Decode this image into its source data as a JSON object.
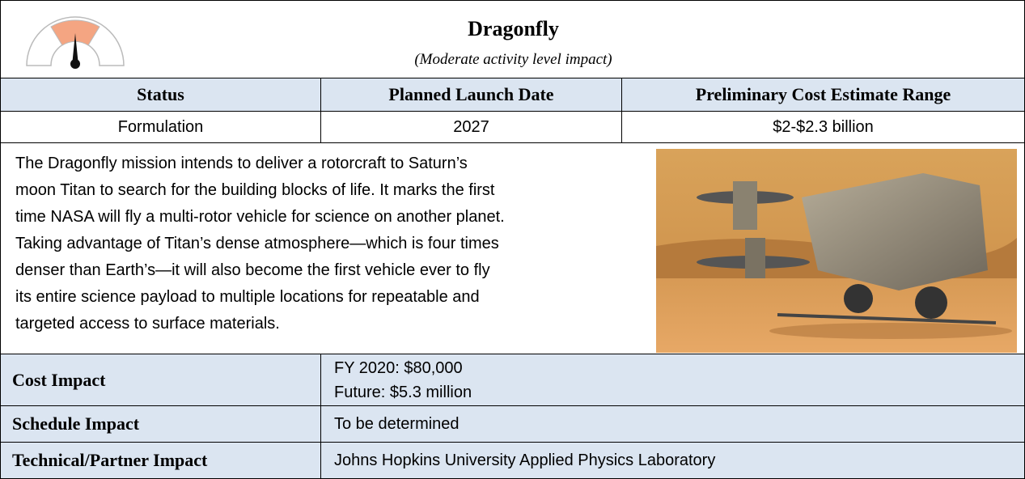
{
  "header": {
    "title": "Dragonfly",
    "subtitle": "(Moderate activity level impact)"
  },
  "table": {
    "columns": [
      "Status",
      "Planned Launch Date",
      "Preliminary Cost Estimate Range"
    ],
    "values": [
      "Formulation",
      "2027",
      "$2-$2.3 billion"
    ]
  },
  "description": {
    "lines": [
      "The Dragonfly mission intends to deliver a rotorcraft to Saturn’s",
      "moon Titan to search for the building blocks of life.  It marks the first",
      "time NASA will fly a multi-rotor vehicle for science on another planet.",
      "Taking advantage of Titan’s dense atmosphere—which is four times",
      "denser than Earth’s—it will also become the first vehicle ever to fly",
      "its entire science payload to multiple locations for repeatable and",
      "targeted access to surface materials."
    ]
  },
  "impacts": [
    {
      "label": "Cost Impact",
      "lines": [
        "FY 2020:  $80,000",
        "Future:  $5.3 million"
      ]
    },
    {
      "label": "Schedule Impact",
      "lines": [
        "To be determined"
      ]
    },
    {
      "label": "Technical/Partner Impact",
      "lines": [
        "Johns Hopkins University Applied Physics Laboratory"
      ]
    }
  ]
}
